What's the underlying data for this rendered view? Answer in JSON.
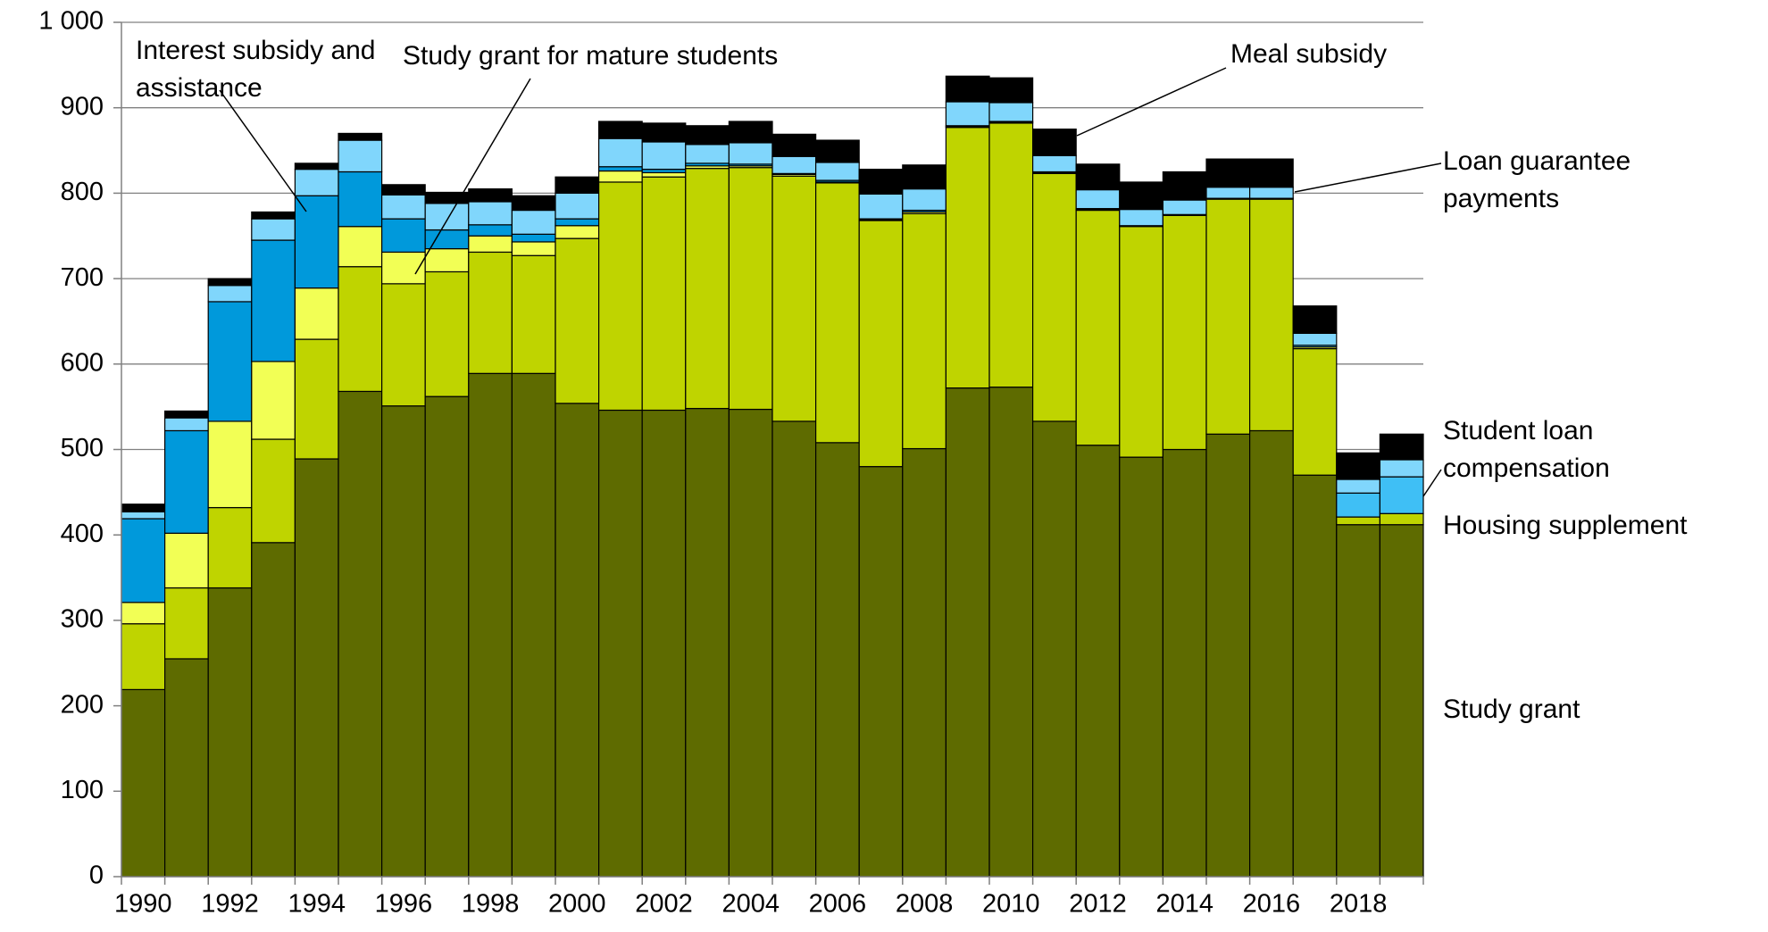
{
  "chart_data": {
    "type": "stacked_bar",
    "categories": [
      "1990",
      null,
      "1992",
      null,
      "1994",
      null,
      "1996",
      null,
      "1998",
      null,
      "2000",
      null,
      "2002",
      null,
      "2004",
      null,
      "2006",
      null,
      "2008",
      null,
      "2010",
      null,
      "2012",
      null,
      "2014",
      null,
      "2016",
      null,
      "2018",
      null
    ],
    "ylim": [
      0,
      1000
    ],
    "yticks": [
      0,
      100,
      200,
      300,
      400,
      500,
      600,
      700,
      800,
      900,
      {
        "value": 1000,
        "label": "1 000"
      }
    ],
    "grid": true,
    "series": [
      {
        "name": "Study grant",
        "color": "#5e6b00",
        "values": [
          219,
          255,
          338,
          391,
          489,
          568,
          551,
          562,
          589,
          589,
          554,
          546,
          546,
          548,
          547,
          533,
          508,
          480,
          501,
          572,
          573,
          533,
          505,
          491,
          500,
          518,
          522,
          470,
          412,
          412
        ]
      },
      {
        "name": "Housing supplement",
        "color": "#bfd400",
        "values": [
          77,
          83,
          94,
          121,
          140,
          146,
          143,
          146,
          142,
          138,
          193,
          267,
          273,
          281,
          283,
          287,
          304,
          288,
          275,
          305,
          309,
          290,
          275,
          270,
          274,
          275,
          271,
          148,
          9,
          13
        ]
      },
      {
        "name": "Study grant for mature students",
        "color": "#f2ff55",
        "values": [
          25,
          64,
          101,
          91,
          60,
          47,
          37,
          27,
          19,
          16,
          15,
          13,
          5,
          3,
          2,
          2,
          1,
          1,
          2,
          1,
          1,
          1,
          1,
          1,
          1,
          1,
          1,
          2,
          0,
          0
        ]
      },
      {
        "name": "Interest subsidy and assistance",
        "color": "#0099db",
        "values": [
          98,
          120,
          140,
          142,
          108,
          64,
          39,
          22,
          13,
          9,
          8,
          5,
          4,
          3,
          2,
          1,
          2,
          1,
          2,
          1,
          1,
          1,
          1,
          0,
          0,
          0,
          0,
          0,
          0,
          0
        ]
      },
      {
        "name": "Student loan compensation",
        "color": "#3fbff5",
        "values": [
          0,
          0,
          0,
          0,
          0,
          0,
          0,
          0,
          0,
          0,
          0,
          0,
          0,
          0,
          0,
          0,
          0,
          0,
          0,
          0,
          0,
          0,
          0,
          0,
          0,
          0,
          0,
          2,
          28,
          43
        ]
      },
      {
        "name": "Loan guarantee payments",
        "color": "#80d6fc",
        "values": [
          8,
          15,
          19,
          25,
          31,
          37,
          28,
          31,
          27,
          28,
          30,
          33,
          32,
          22,
          25,
          20,
          21,
          29,
          25,
          28,
          22,
          19,
          22,
          19,
          17,
          13,
          13,
          14,
          16,
          20
        ]
      },
      {
        "name": "Meal subsidy",
        "color": "#000000",
        "values": [
          9,
          8,
          8,
          8,
          7,
          8,
          12,
          13,
          15,
          17,
          19,
          20,
          22,
          22,
          25,
          26,
          26,
          29,
          28,
          30,
          29,
          31,
          30,
          32,
          33,
          33,
          33,
          32,
          31,
          30
        ]
      }
    ]
  }
}
